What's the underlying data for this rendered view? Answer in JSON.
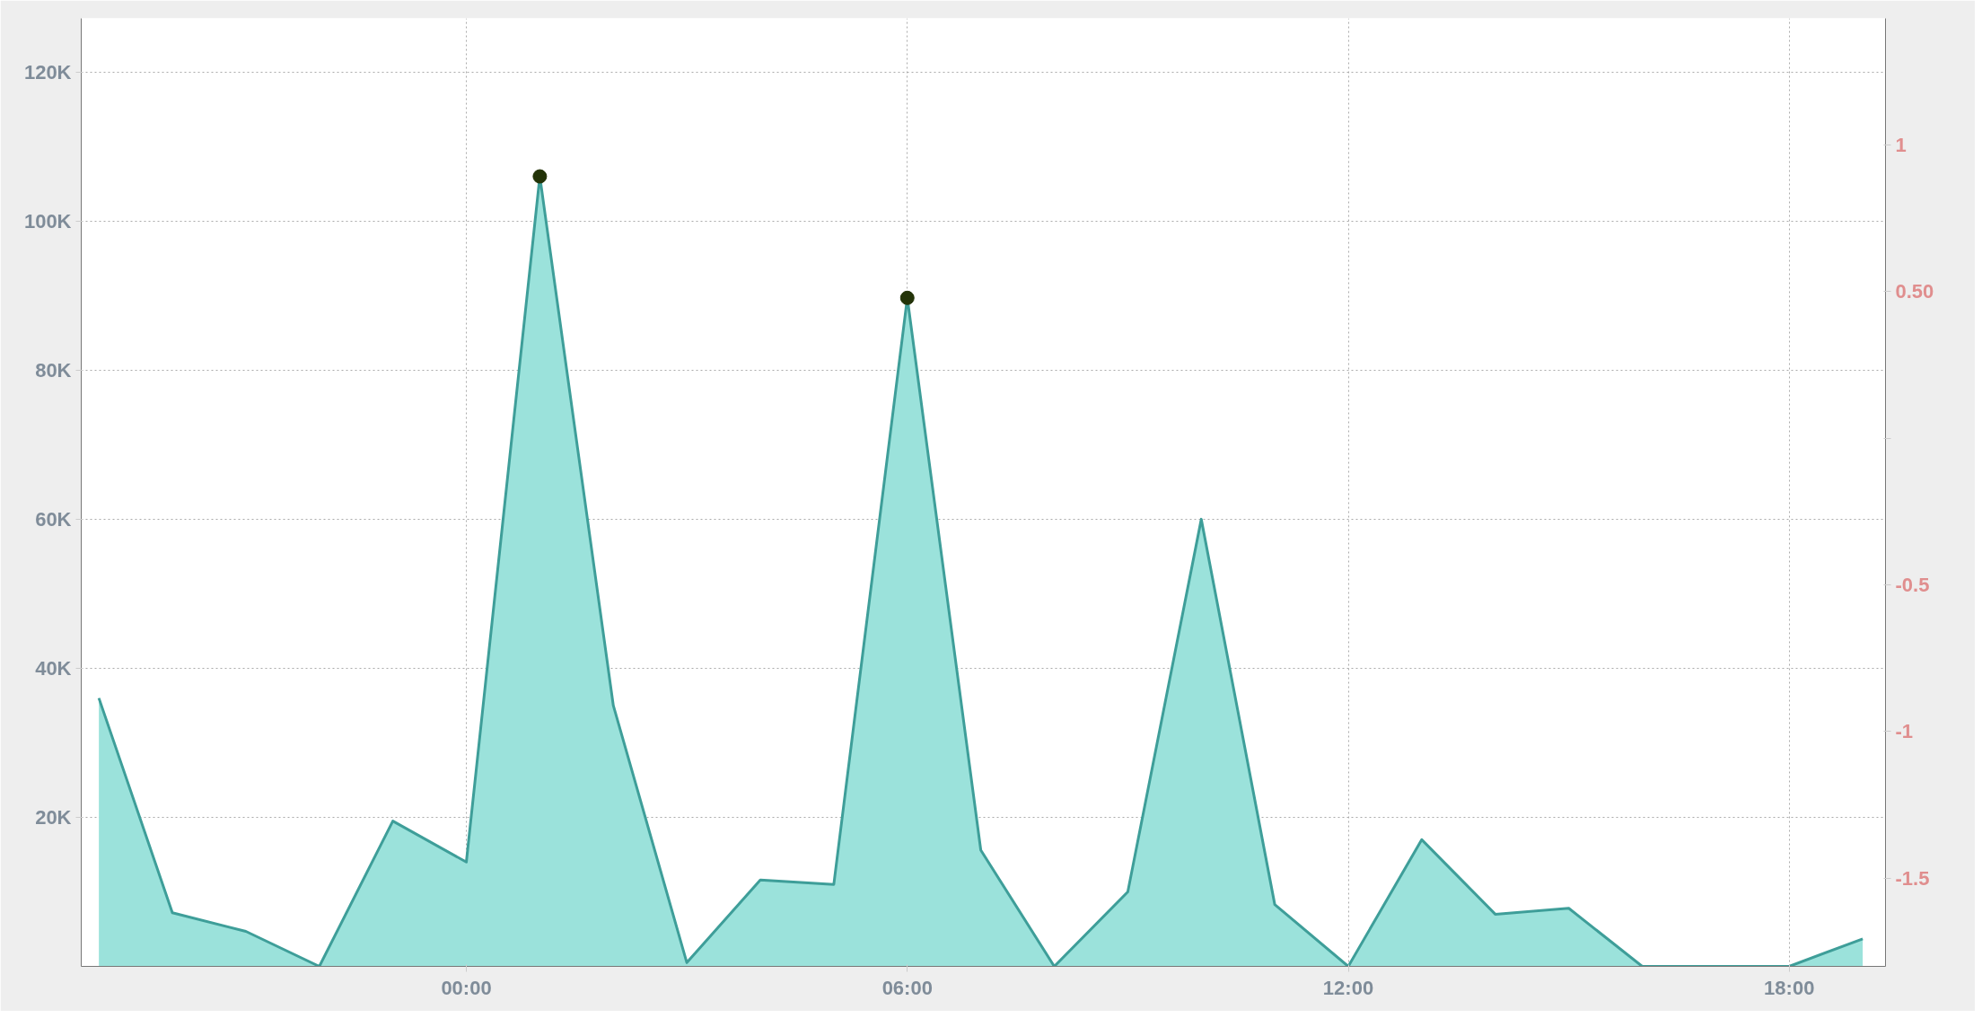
{
  "chart_data": {
    "type": "area",
    "x": [
      -5,
      -4,
      -3,
      -2,
      -1,
      0,
      1,
      2,
      3,
      4,
      5,
      6,
      7,
      8,
      9,
      10,
      11,
      12,
      13,
      14,
      15,
      16,
      17,
      18,
      19
    ],
    "series": [
      {
        "color": "#9be2db",
        "values": [
          36000,
          7200,
          4700,
          0,
          19500,
          14000,
          106000,
          35000,
          500,
          11600,
          11000,
          89700,
          15600,
          0,
          10000,
          60000,
          8300,
          0,
          17000,
          7000,
          7800,
          0,
          0,
          0,
          3700
        ]
      },
      {
        "type": "scatter",
        "marker": "circle",
        "color": "#233308",
        "x": [
          1,
          6
        ],
        "values": [
          106000,
          89700
        ]
      }
    ],
    "xlim": [
      -5.24,
      19.31
    ],
    "xticks": [
      {
        "value": 0,
        "label": "00:00"
      },
      {
        "value": 6,
        "label": "06:00"
      },
      {
        "value": 12,
        "label": "12:00"
      },
      {
        "value": 18,
        "label": "18:00"
      }
    ],
    "ylim": [
      0,
      127200
    ],
    "yticks": [
      {
        "value": 20000,
        "label": "20K"
      },
      {
        "value": 40000,
        "label": "40K"
      },
      {
        "value": 60000,
        "label": "60K"
      },
      {
        "value": 80000,
        "label": "80K"
      },
      {
        "value": 100000,
        "label": "100K"
      },
      {
        "value": 120000,
        "label": "120K"
      }
    ],
    "y2lim": [
      -1.8,
      1.43
    ],
    "y2ticks": [
      {
        "value": 1,
        "label": "1"
      },
      {
        "value": 0.5,
        "label": "0.50"
      },
      {
        "value": 0,
        "label": null
      },
      {
        "value": -0.5,
        "label": "-0.5"
      },
      {
        "value": -1,
        "label": "-1"
      },
      {
        "value": -1.5,
        "label": "-1.5"
      }
    ],
    "grid": true
  }
}
